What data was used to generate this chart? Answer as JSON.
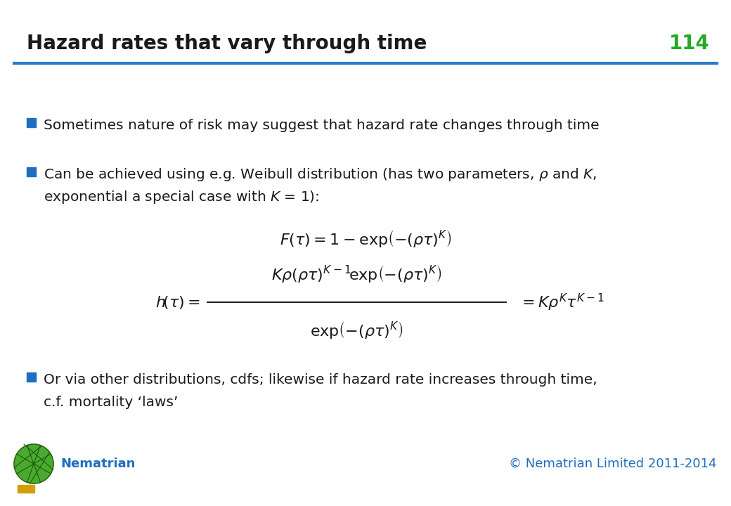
{
  "title": "Hazard rates that vary through time",
  "slide_number": "114",
  "title_color": "#1A1A1A",
  "title_font_size": 20,
  "slide_number_color": "#22AA22",
  "header_line_color": "#2B7BC8",
  "bullet_color": "#1F6EBF",
  "text_color": "#1A1A1A",
  "footer_text_left": "Nematrian",
  "footer_text_right": "© Nematrian Limited 2011-2014",
  "footer_color": "#1F6EBF",
  "background_color": "#FFFFFF",
  "bullet1": "Sometimes nature of risk may suggest that hazard rate changes through time",
  "bullet2_line1": "Can be achieved using e.g. Weibull distribution (has two parameters, $\\rho$ and $K$,",
  "bullet2_line2": "exponential a special case with $K$ = 1):",
  "bullet3_line1": "Or via other distributions, cdfs; likewise if hazard rate increases through time,",
  "bullet3_line2": "c.f. mortality ‘laws’"
}
